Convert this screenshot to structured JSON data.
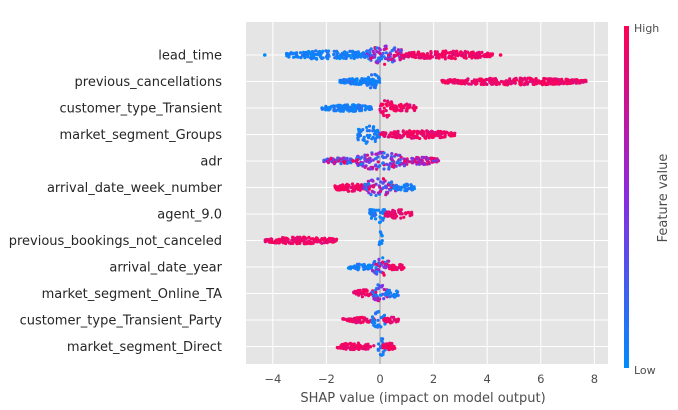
{
  "chart_data": {
    "type": "scatter",
    "subtype": "shap-beeswarm",
    "xlabel": "SHAP value (impact on model output)",
    "xlim": [
      -5.1,
      8.3
    ],
    "xticks": [
      -4,
      -2,
      0,
      2,
      4,
      6,
      8
    ],
    "grid": true,
    "zero_line": 0,
    "colorbar": {
      "label": "Feature value",
      "high_label": "High",
      "low_label": "Low",
      "high_color": "#ff0052",
      "mid_color": "#8a2be2",
      "low_color": "#008bfb"
    },
    "features": [
      {
        "name": "lead_time",
        "min": -4.3,
        "max": 4.5,
        "segments": [
          {
            "from": -3.5,
            "to": -0.3,
            "tone": "low",
            "spread": 0.45
          },
          {
            "from": -0.5,
            "to": 0.9,
            "tone": "mix",
            "spread": 0.95
          },
          {
            "from": 0.8,
            "to": 4.2,
            "tone": "high",
            "spread": 0.4
          }
        ],
        "outliers": [
          {
            "x": -4.3,
            "tone": "low"
          },
          {
            "x": 4.5,
            "tone": "high"
          }
        ]
      },
      {
        "name": "previous_cancellations",
        "min": -1.5,
        "max": 7.7,
        "segments": [
          {
            "from": -1.5,
            "to": -0.1,
            "tone": "low",
            "spread": 0.3
          },
          {
            "from": -0.5,
            "to": 0.0,
            "tone": "low",
            "spread": 0.75
          },
          {
            "from": 2.3,
            "to": 7.7,
            "tone": "high",
            "spread": 0.35
          }
        ],
        "outliers": []
      },
      {
        "name": "customer_type_Transient",
        "min": -2.2,
        "max": 1.4,
        "segments": [
          {
            "from": -2.2,
            "to": -0.3,
            "tone": "low",
            "spread": 0.35
          },
          {
            "from": 0.0,
            "to": 0.5,
            "tone": "high",
            "spread": 0.95
          },
          {
            "from": 0.4,
            "to": 1.4,
            "tone": "high",
            "spread": 0.4
          }
        ],
        "outliers": []
      },
      {
        "name": "market_segment_Groups",
        "min": -0.9,
        "max": 2.8,
        "segments": [
          {
            "from": -0.9,
            "to": 0.0,
            "tone": "low",
            "spread": 0.9
          },
          {
            "from": 0.0,
            "to": 2.8,
            "tone": "high",
            "spread": 0.4
          }
        ],
        "outliers": []
      },
      {
        "name": "adr",
        "min": -2.1,
        "max": 2.2,
        "segments": [
          {
            "from": -2.1,
            "to": -1.0,
            "tone": "mix",
            "spread": 0.35
          },
          {
            "from": -0.9,
            "to": 1.0,
            "tone": "mix",
            "spread": 0.95
          },
          {
            "from": 0.9,
            "to": 2.2,
            "tone": "mixhigh",
            "spread": 0.4
          }
        ],
        "outliers": []
      },
      {
        "name": "arrival_date_week_number",
        "min": -1.7,
        "max": 1.3,
        "segments": [
          {
            "from": -1.7,
            "to": -0.5,
            "tone": "high",
            "spread": 0.4
          },
          {
            "from": -0.6,
            "to": 0.6,
            "tone": "mix",
            "spread": 0.95
          },
          {
            "from": 0.5,
            "to": 1.3,
            "tone": "low",
            "spread": 0.4
          }
        ],
        "outliers": []
      },
      {
        "name": "agent_9.0",
        "min": -0.4,
        "max": 1.2,
        "segments": [
          {
            "from": -0.4,
            "to": 0.2,
            "tone": "low",
            "spread": 0.9
          },
          {
            "from": 0.2,
            "to": 1.2,
            "tone": "high",
            "spread": 0.45
          }
        ],
        "outliers": []
      },
      {
        "name": "previous_bookings_not_canceled",
        "min": -4.3,
        "max": 0.1,
        "segments": [
          {
            "from": -4.3,
            "to": -1.6,
            "tone": "high",
            "spread": 0.35
          },
          {
            "from": -0.05,
            "to": 0.1,
            "tone": "low",
            "spread": 0.9
          }
        ],
        "outliers": []
      },
      {
        "name": "arrival_date_year",
        "min": -1.2,
        "max": 0.9,
        "segments": [
          {
            "from": -1.2,
            "to": -0.3,
            "tone": "low",
            "spread": 0.3
          },
          {
            "from": -0.3,
            "to": 0.4,
            "tone": "mix",
            "spread": 0.95
          },
          {
            "from": 0.3,
            "to": 0.9,
            "tone": "high",
            "spread": 0.35
          }
        ],
        "outliers": []
      },
      {
        "name": "market_segment_Online_TA",
        "min": -1.0,
        "max": 0.7,
        "segments": [
          {
            "from": -1.0,
            "to": -0.3,
            "tone": "high",
            "spread": 0.4
          },
          {
            "from": -0.3,
            "to": 0.3,
            "tone": "mix",
            "spread": 0.95
          },
          {
            "from": 0.2,
            "to": 0.7,
            "tone": "low",
            "spread": 0.4
          }
        ],
        "outliers": []
      },
      {
        "name": "customer_type_Transient_Party",
        "min": -1.4,
        "max": 0.7,
        "segments": [
          {
            "from": -1.4,
            "to": -0.2,
            "tone": "high",
            "spread": 0.3
          },
          {
            "from": -0.3,
            "to": 0.2,
            "tone": "low",
            "spread": 0.9
          },
          {
            "from": 0.1,
            "to": 0.7,
            "tone": "high",
            "spread": 0.3
          }
        ],
        "outliers": []
      },
      {
        "name": "market_segment_Direct",
        "min": -1.6,
        "max": 0.6,
        "segments": [
          {
            "from": -1.6,
            "to": -0.2,
            "tone": "high",
            "spread": 0.35
          },
          {
            "from": -0.1,
            "to": 0.2,
            "tone": "low",
            "spread": 0.9
          },
          {
            "from": 0.1,
            "to": 0.6,
            "tone": "high",
            "spread": 0.35
          }
        ],
        "outliers": []
      }
    ]
  }
}
